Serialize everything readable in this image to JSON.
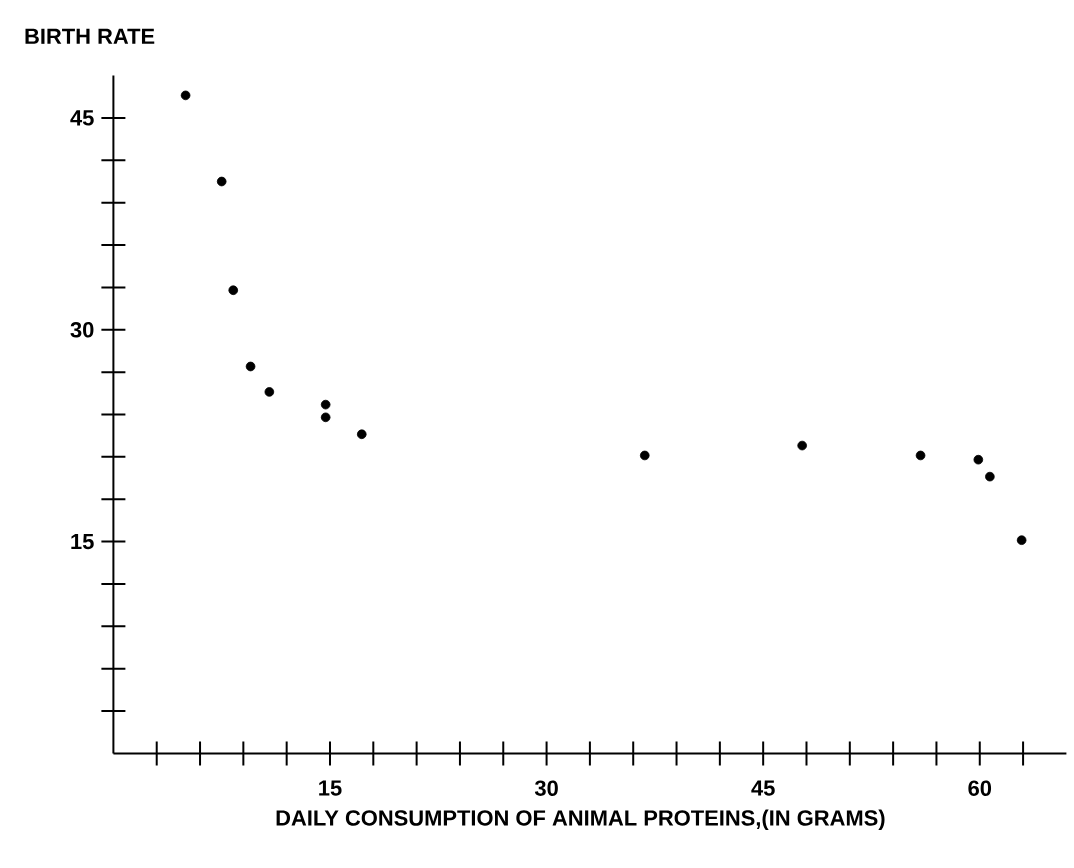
{
  "chart_data": {
    "type": "scatter",
    "ylabel": "BIRTH RATE",
    "xlabel": "DAILY CONSUMPTION OF ANIMAL PROTEINS,(IN GRAMS)",
    "x": [
      5.0,
      7.5,
      8.3,
      9.5,
      10.8,
      14.7,
      14.7,
      17.2,
      36.8,
      47.7,
      55.9,
      59.9,
      60.7,
      62.9
    ],
    "values": [
      46.6,
      40.5,
      32.8,
      27.4,
      25.6,
      24.7,
      23.8,
      22.6,
      21.1,
      21.8,
      21.1,
      20.8,
      19.6,
      15.1
    ],
    "color": "#000000",
    "grid": false,
    "xlim": [
      0,
      66
    ],
    "ylim": [
      0,
      48
    ],
    "xticks": [
      {
        "value": 3,
        "label": null
      },
      {
        "value": 6,
        "label": null
      },
      {
        "value": 9,
        "label": null
      },
      {
        "value": 12,
        "label": null
      },
      15,
      {
        "value": 18,
        "label": null
      },
      {
        "value": 21,
        "label": null
      },
      {
        "value": 24,
        "label": null
      },
      {
        "value": 27,
        "label": null
      },
      30,
      {
        "value": 33,
        "label": null
      },
      {
        "value": 36,
        "label": null
      },
      {
        "value": 39,
        "label": null
      },
      {
        "value": 42,
        "label": null
      },
      45,
      {
        "value": 48,
        "label": null
      },
      {
        "value": 51,
        "label": null
      },
      {
        "value": 54,
        "label": null
      },
      {
        "value": 57,
        "label": null
      },
      60,
      {
        "value": 63,
        "label": null
      }
    ],
    "yticks": [
      {
        "value": 3,
        "label": null
      },
      {
        "value": 6,
        "label": null
      },
      {
        "value": 9,
        "label": null
      },
      {
        "value": 12,
        "label": null
      },
      15,
      {
        "value": 18,
        "label": null
      },
      {
        "value": 21,
        "label": null
      },
      {
        "value": 24,
        "label": null
      },
      {
        "value": 27,
        "label": null
      },
      30,
      {
        "value": 33,
        "label": null
      },
      {
        "value": 36,
        "label": null
      },
      {
        "value": 39,
        "label": null
      },
      {
        "value": 42,
        "label": null
      },
      45
    ]
  }
}
